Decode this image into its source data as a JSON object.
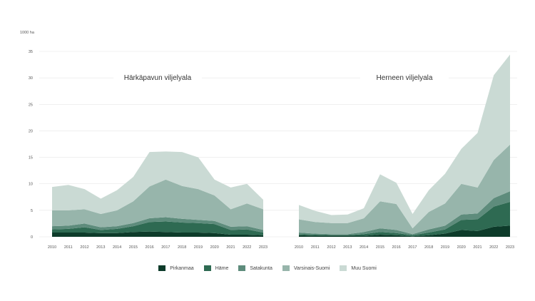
{
  "chart_data": {
    "type": "area",
    "unit_label": "1000 ha",
    "ylim": [
      0,
      35
    ],
    "yticks": [
      0,
      5,
      10,
      15,
      20,
      25,
      30,
      35
    ],
    "grid": true,
    "legend_position": "bottom",
    "series_names": [
      "Pirkanmaa",
      "Häme",
      "Satakunta",
      "Varsinais-Suomi",
      "Muu Suomi"
    ],
    "colors": [
      "#0d3b2a",
      "#2e6a52",
      "#5e8c7c",
      "#97b5ab",
      "#cadad4"
    ],
    "panels": [
      {
        "title": "Härkäpavun viljelyala",
        "x": [
          "2010",
          "2011",
          "2012",
          "2013",
          "2014",
          "2015",
          "2016",
          "2017",
          "2018",
          "2019",
          "2020",
          "2021",
          "2022",
          "2023"
        ],
        "series": [
          {
            "name": "Pirkanmaa",
            "values": [
              0.8,
              0.8,
              0.8,
              0.7,
              0.7,
              0.9,
              1.0,
              0.9,
              0.8,
              0.8,
              0.7,
              0.4,
              0.4,
              0.3
            ]
          },
          {
            "name": "Häme",
            "values": [
              0.6,
              0.7,
              1.0,
              0.6,
              0.8,
              1.1,
              1.8,
              2.0,
              1.9,
              1.8,
              1.7,
              0.9,
              1.0,
              0.5
            ]
          },
          {
            "name": "Satakunta",
            "values": [
              0.6,
              0.6,
              0.7,
              0.5,
              0.5,
              0.6,
              0.7,
              0.8,
              0.7,
              0.6,
              0.6,
              0.6,
              0.6,
              0.5
            ]
          },
          {
            "name": "Varsinais-Suomi",
            "values": [
              3.0,
              2.9,
              2.7,
              2.5,
              3.0,
              4.1,
              6.0,
              7.1,
              6.2,
              5.8,
              4.8,
              3.3,
              4.3,
              3.9
            ]
          },
          {
            "name": "Muu Suomi",
            "values": [
              4.4,
              4.8,
              3.8,
              2.9,
              3.8,
              4.6,
              6.5,
              5.3,
              6.4,
              6.0,
              3.0,
              4.1,
              3.7,
              1.8
            ]
          }
        ]
      },
      {
        "title": "Herneen viljelyala",
        "x": [
          "2010",
          "2011",
          "2012",
          "2013",
          "2014",
          "2015",
          "2016",
          "2017",
          "2018",
          "2019",
          "2020",
          "2021",
          "2022",
          "2023"
        ],
        "series": [
          {
            "name": "Pirkanmaa",
            "values": [
              0.3,
              0.2,
              0.2,
              0.2,
              0.2,
              0.4,
              0.3,
              0.1,
              0.3,
              0.6,
              1.3,
              1.1,
              1.9,
              2.1
            ]
          },
          {
            "name": "Häme",
            "values": [
              0.2,
              0.2,
              0.1,
              0.1,
              0.3,
              0.5,
              0.4,
              0.2,
              0.5,
              0.8,
              1.9,
              2.2,
              3.8,
              4.5
            ]
          },
          {
            "name": "Satakunta",
            "values": [
              0.3,
              0.2,
              0.2,
              0.2,
              0.4,
              0.7,
              0.6,
              0.2,
              0.6,
              0.7,
              1.0,
              1.1,
              1.6,
              2.0
            ]
          },
          {
            "name": "Varsinais-Suomi",
            "values": [
              2.5,
              2.2,
              2.1,
              2.1,
              2.6,
              5.1,
              4.9,
              1.1,
              3.3,
              4.2,
              5.8,
              4.9,
              7.2,
              8.8
            ]
          },
          {
            "name": "Muu Suomi",
            "values": [
              2.7,
              2.1,
              1.5,
              1.6,
              1.9,
              5.1,
              4.0,
              2.7,
              4.1,
              5.6,
              6.6,
              10.3,
              16.0,
              17.0
            ]
          }
        ]
      }
    ]
  }
}
